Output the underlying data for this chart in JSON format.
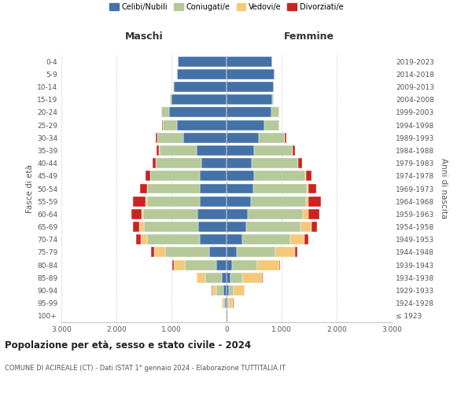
{
  "age_groups": [
    "100+",
    "95-99",
    "90-94",
    "85-89",
    "80-84",
    "75-79",
    "70-74",
    "65-69",
    "60-64",
    "55-59",
    "50-54",
    "45-49",
    "40-44",
    "35-39",
    "30-34",
    "25-29",
    "20-24",
    "15-19",
    "10-14",
    "5-9",
    "0-4"
  ],
  "birth_years": [
    "≤ 1923",
    "1924-1928",
    "1929-1933",
    "1934-1938",
    "1939-1943",
    "1944-1948",
    "1949-1953",
    "1954-1958",
    "1959-1963",
    "1964-1968",
    "1969-1973",
    "1974-1978",
    "1979-1983",
    "1984-1988",
    "1989-1993",
    "1994-1998",
    "1999-2003",
    "2004-2008",
    "2009-2013",
    "2014-2018",
    "2019-2023"
  ],
  "colors": {
    "celibe": "#4472a8",
    "coniugato": "#b5c99a",
    "vedovo": "#f5c97a",
    "divorziato": "#cc2222"
  },
  "maschi": {
    "celibe": [
      10,
      30,
      60,
      90,
      180,
      320,
      490,
      520,
      530,
      480,
      480,
      480,
      460,
      540,
      780,
      900,
      1050,
      1000,
      960,
      900,
      880
    ],
    "coniugato": [
      5,
      30,
      120,
      300,
      580,
      800,
      950,
      980,
      980,
      970,
      960,
      900,
      820,
      680,
      480,
      260,
      130,
      30,
      10,
      5,
      2
    ],
    "vedovo": [
      5,
      30,
      80,
      150,
      200,
      200,
      120,
      80,
      40,
      20,
      10,
      5,
      5,
      5,
      2,
      2,
      2,
      2,
      0,
      0,
      0
    ],
    "divorziato": [
      0,
      2,
      5,
      10,
      20,
      50,
      80,
      120,
      180,
      230,
      120,
      90,
      60,
      50,
      30,
      10,
      5,
      2,
      0,
      0,
      0
    ]
  },
  "femmine": {
    "nubile": [
      10,
      20,
      40,
      70,
      100,
      180,
      280,
      360,
      390,
      440,
      480,
      500,
      460,
      500,
      580,
      680,
      820,
      830,
      850,
      870,
      830
    ],
    "coniugata": [
      3,
      20,
      90,
      220,
      450,
      700,
      870,
      980,
      1000,
      1000,
      980,
      930,
      840,
      700,
      480,
      270,
      130,
      25,
      10,
      5,
      2
    ],
    "vedova": [
      15,
      80,
      200,
      350,
      400,
      360,
      270,
      200,
      100,
      50,
      20,
      10,
      5,
      5,
      3,
      2,
      2,
      2,
      0,
      0,
      0
    ],
    "divorziata": [
      0,
      2,
      5,
      10,
      20,
      40,
      70,
      100,
      200,
      230,
      150,
      100,
      60,
      40,
      20,
      8,
      5,
      2,
      0,
      0,
      0
    ]
  },
  "title": "Popolazione per età, sesso e stato civile - 2024",
  "subtitle": "COMUNE DI ACIREALE (CT) - Dati ISTAT 1° gennaio 2024 - Elaborazione TUTTITALIA.IT",
  "xlabel_left": "Maschi",
  "xlabel_right": "Femmine",
  "ylabel_left": "Fasce di età",
  "ylabel_right": "Anni di nascita",
  "xlim": 3000,
  "xtick_labels": [
    "3.000",
    "2.000",
    "1.000",
    "0",
    "1.000",
    "2.000",
    "3.000"
  ],
  "legend_labels": [
    "Celibi/Nubili",
    "Coniugati/e",
    "Vedovi/e",
    "Divorziati/e"
  ],
  "background_color": "#ffffff"
}
